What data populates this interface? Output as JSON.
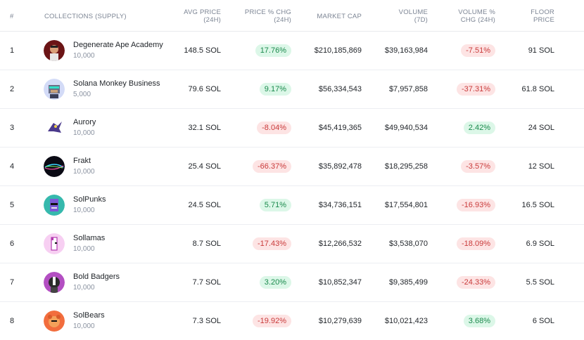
{
  "headers": {
    "rank": "#",
    "collection": "COLLECTIONS (SUPPLY)",
    "avg_price_1": "AVG PRICE",
    "avg_price_2": "(24H)",
    "price_chg_1": "PRICE % CHG",
    "price_chg_2": "(24H)",
    "market_cap": "MARKET CAP",
    "volume_1": "VOLUME",
    "volume_2": "(7D)",
    "volume_chg_1": "VOLUME %",
    "volume_chg_2": "CHG (24H)",
    "floor_1": "FLOOR",
    "floor_2": "PRICE"
  },
  "rows": [
    {
      "rank": "1",
      "name": "Degenerate Ape Academy",
      "supply": "10,000",
      "avg_price": "148.5 SOL",
      "price_chg": "17.76%",
      "price_dir": "pos",
      "market_cap": "$210,185,869",
      "volume": "$39,163,984",
      "volume_chg": "-7.51%",
      "volume_dir": "neg",
      "floor": "91 SOL",
      "icon": "ape-avatar-icon",
      "color": "#7a1e1e"
    },
    {
      "rank": "2",
      "name": "Solana Monkey Business",
      "supply": "5,000",
      "avg_price": "79.6 SOL",
      "price_chg": "9.17%",
      "price_dir": "pos",
      "market_cap": "$56,334,543",
      "volume": "$7,957,858",
      "volume_chg": "-37.31%",
      "volume_dir": "neg",
      "floor": "61.8 SOL",
      "icon": "monkey-avatar-icon",
      "color": "#cfd6f5"
    },
    {
      "rank": "3",
      "name": "Aurory",
      "supply": "10,000",
      "avg_price": "32.1 SOL",
      "price_chg": "-8.04%",
      "price_dir": "neg",
      "market_cap": "$45,419,365",
      "volume": "$49,940,534",
      "volume_chg": "2.42%",
      "volume_dir": "pos",
      "floor": "24 SOL",
      "icon": "aurory-avatar-icon",
      "color": "#ffffff"
    },
    {
      "rank": "4",
      "name": "Frakt",
      "supply": "10,000",
      "avg_price": "25.4 SOL",
      "price_chg": "-66.37%",
      "price_dir": "neg",
      "market_cap": "$35,892,478",
      "volume": "$18,295,258",
      "volume_chg": "-3.57%",
      "volume_dir": "neg",
      "floor": "12 SOL",
      "icon": "frakt-avatar-icon",
      "color": "#0a0a14"
    },
    {
      "rank": "5",
      "name": "SolPunks",
      "supply": "10,000",
      "avg_price": "24.5 SOL",
      "price_chg": "5.71%",
      "price_dir": "pos",
      "market_cap": "$34,736,151",
      "volume": "$17,554,801",
      "volume_chg": "-16.93%",
      "volume_dir": "neg",
      "floor": "16.5 SOL",
      "icon": "solpunk-avatar-icon",
      "color": "#2fb7a8"
    },
    {
      "rank": "6",
      "name": "Sollamas",
      "supply": "10,000",
      "avg_price": "8.7 SOL",
      "price_chg": "-17.43%",
      "price_dir": "neg",
      "market_cap": "$12,266,532",
      "volume": "$3,538,070",
      "volume_chg": "-18.09%",
      "volume_dir": "neg",
      "floor": "6.9 SOL",
      "icon": "llama-avatar-icon",
      "color": "#f6c8f0"
    },
    {
      "rank": "7",
      "name": "Bold Badgers",
      "supply": "10,000",
      "avg_price": "7.7 SOL",
      "price_chg": "3.20%",
      "price_dir": "pos",
      "market_cap": "$10,852,347",
      "volume": "$9,385,499",
      "volume_chg": "-24.33%",
      "volume_dir": "neg",
      "floor": "5.5 SOL",
      "icon": "badger-avatar-icon",
      "color": "#b84fc0"
    },
    {
      "rank": "8",
      "name": "SolBears",
      "supply": "10,000",
      "avg_price": "7.3 SOL",
      "price_chg": "-19.92%",
      "price_dir": "neg",
      "market_cap": "$10,279,639",
      "volume": "$10,021,423",
      "volume_chg": "3.68%",
      "volume_dir": "pos",
      "floor": "6 SOL",
      "icon": "bear-avatar-icon",
      "color": "#f06a3a"
    }
  ]
}
